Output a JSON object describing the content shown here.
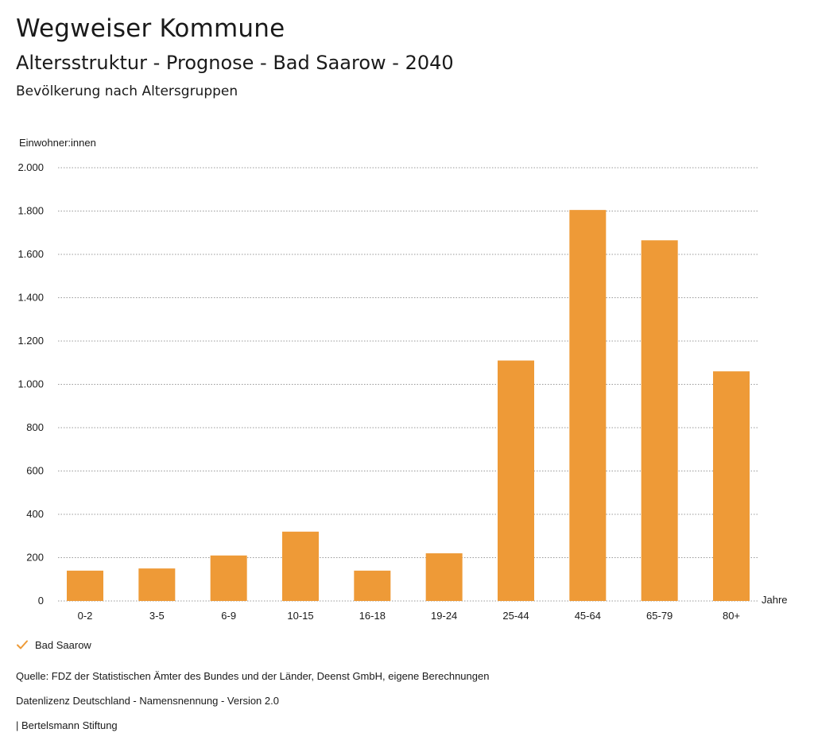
{
  "header": {
    "title": "Wegweiser Kommune",
    "subtitle": "Altersstruktur - Prognose - Bad Saarow - 2040",
    "section": "Bevölkerung nach Altersgruppen"
  },
  "colors": {
    "bar": "#EE9A37",
    "grid": "#999999",
    "text": "#1a1a1a"
  },
  "chart_data": {
    "type": "bar",
    "title": "Bevölkerung nach Altersgruppen",
    "ylabel": "Einwohner:innen",
    "xlabel": "Jahre",
    "ylim": [
      0,
      2000
    ],
    "yticks": [
      0,
      200,
      400,
      600,
      800,
      1000,
      1200,
      1400,
      1600,
      1800,
      2000
    ],
    "ytick_labels": [
      "0",
      "200",
      "400",
      "600",
      "800",
      "1.000",
      "1.200",
      "1.400",
      "1.600",
      "1.800",
      "2.000"
    ],
    "grid": true,
    "legend_position": "bottom-left",
    "categories": [
      "0-2",
      "3-5",
      "6-9",
      "10-15",
      "16-18",
      "19-24",
      "25-44",
      "45-64",
      "65-79",
      "80+"
    ],
    "series": [
      {
        "name": "Bad Saarow",
        "values": [
          140,
          150,
          210,
          320,
          140,
          220,
          1110,
          1805,
          1665,
          1060
        ]
      }
    ]
  },
  "legend": {
    "items": [
      {
        "label": "Bad Saarow",
        "icon": "check-icon"
      }
    ]
  },
  "footer": {
    "source": "Quelle: FDZ der Statistischen Ämter des Bundes und der Länder, Deenst GmbH, eigene Berechnungen",
    "license": "Datenlizenz Deutschland - Namensnennung - Version 2.0",
    "credit": "| Bertelsmann Stiftung"
  }
}
